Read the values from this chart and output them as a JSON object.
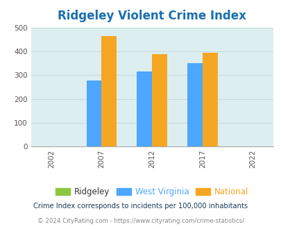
{
  "title": "Ridgeley Violent Crime Index",
  "title_color": "#1a6faf",
  "years": [
    2002,
    2007,
    2012,
    2017,
    2022
  ],
  "bar_years": [
    2007,
    2012,
    2017
  ],
  "ridgeley_values": [
    0,
    0,
    0
  ],
  "wv_values": [
    278,
    315,
    350
  ],
  "national_values": [
    465,
    387,
    393
  ],
  "ridgeley_color": "#8dc63f",
  "wv_color": "#4da6ff",
  "national_color": "#f5a623",
  "bg_color": "#ddeef0",
  "ylim": [
    0,
    500
  ],
  "yticks": [
    0,
    100,
    200,
    300,
    400,
    500
  ],
  "legend_labels": [
    "Ridgeley",
    "West Virginia",
    "National"
  ],
  "legend_label_colors": [
    "#333333",
    "#4da6ff",
    "#f5a623"
  ],
  "footnote1": "Crime Index corresponds to incidents per 100,000 inhabitants",
  "footnote2": "© 2024 CityRating.com - https://www.cityrating.com/crime-statistics/",
  "footnote1_color": "#1a3a5c",
  "footnote2_color": "#888888",
  "bar_width": 1.5,
  "grid_color": "#c5dde0",
  "xlim": [
    2000,
    2024
  ]
}
